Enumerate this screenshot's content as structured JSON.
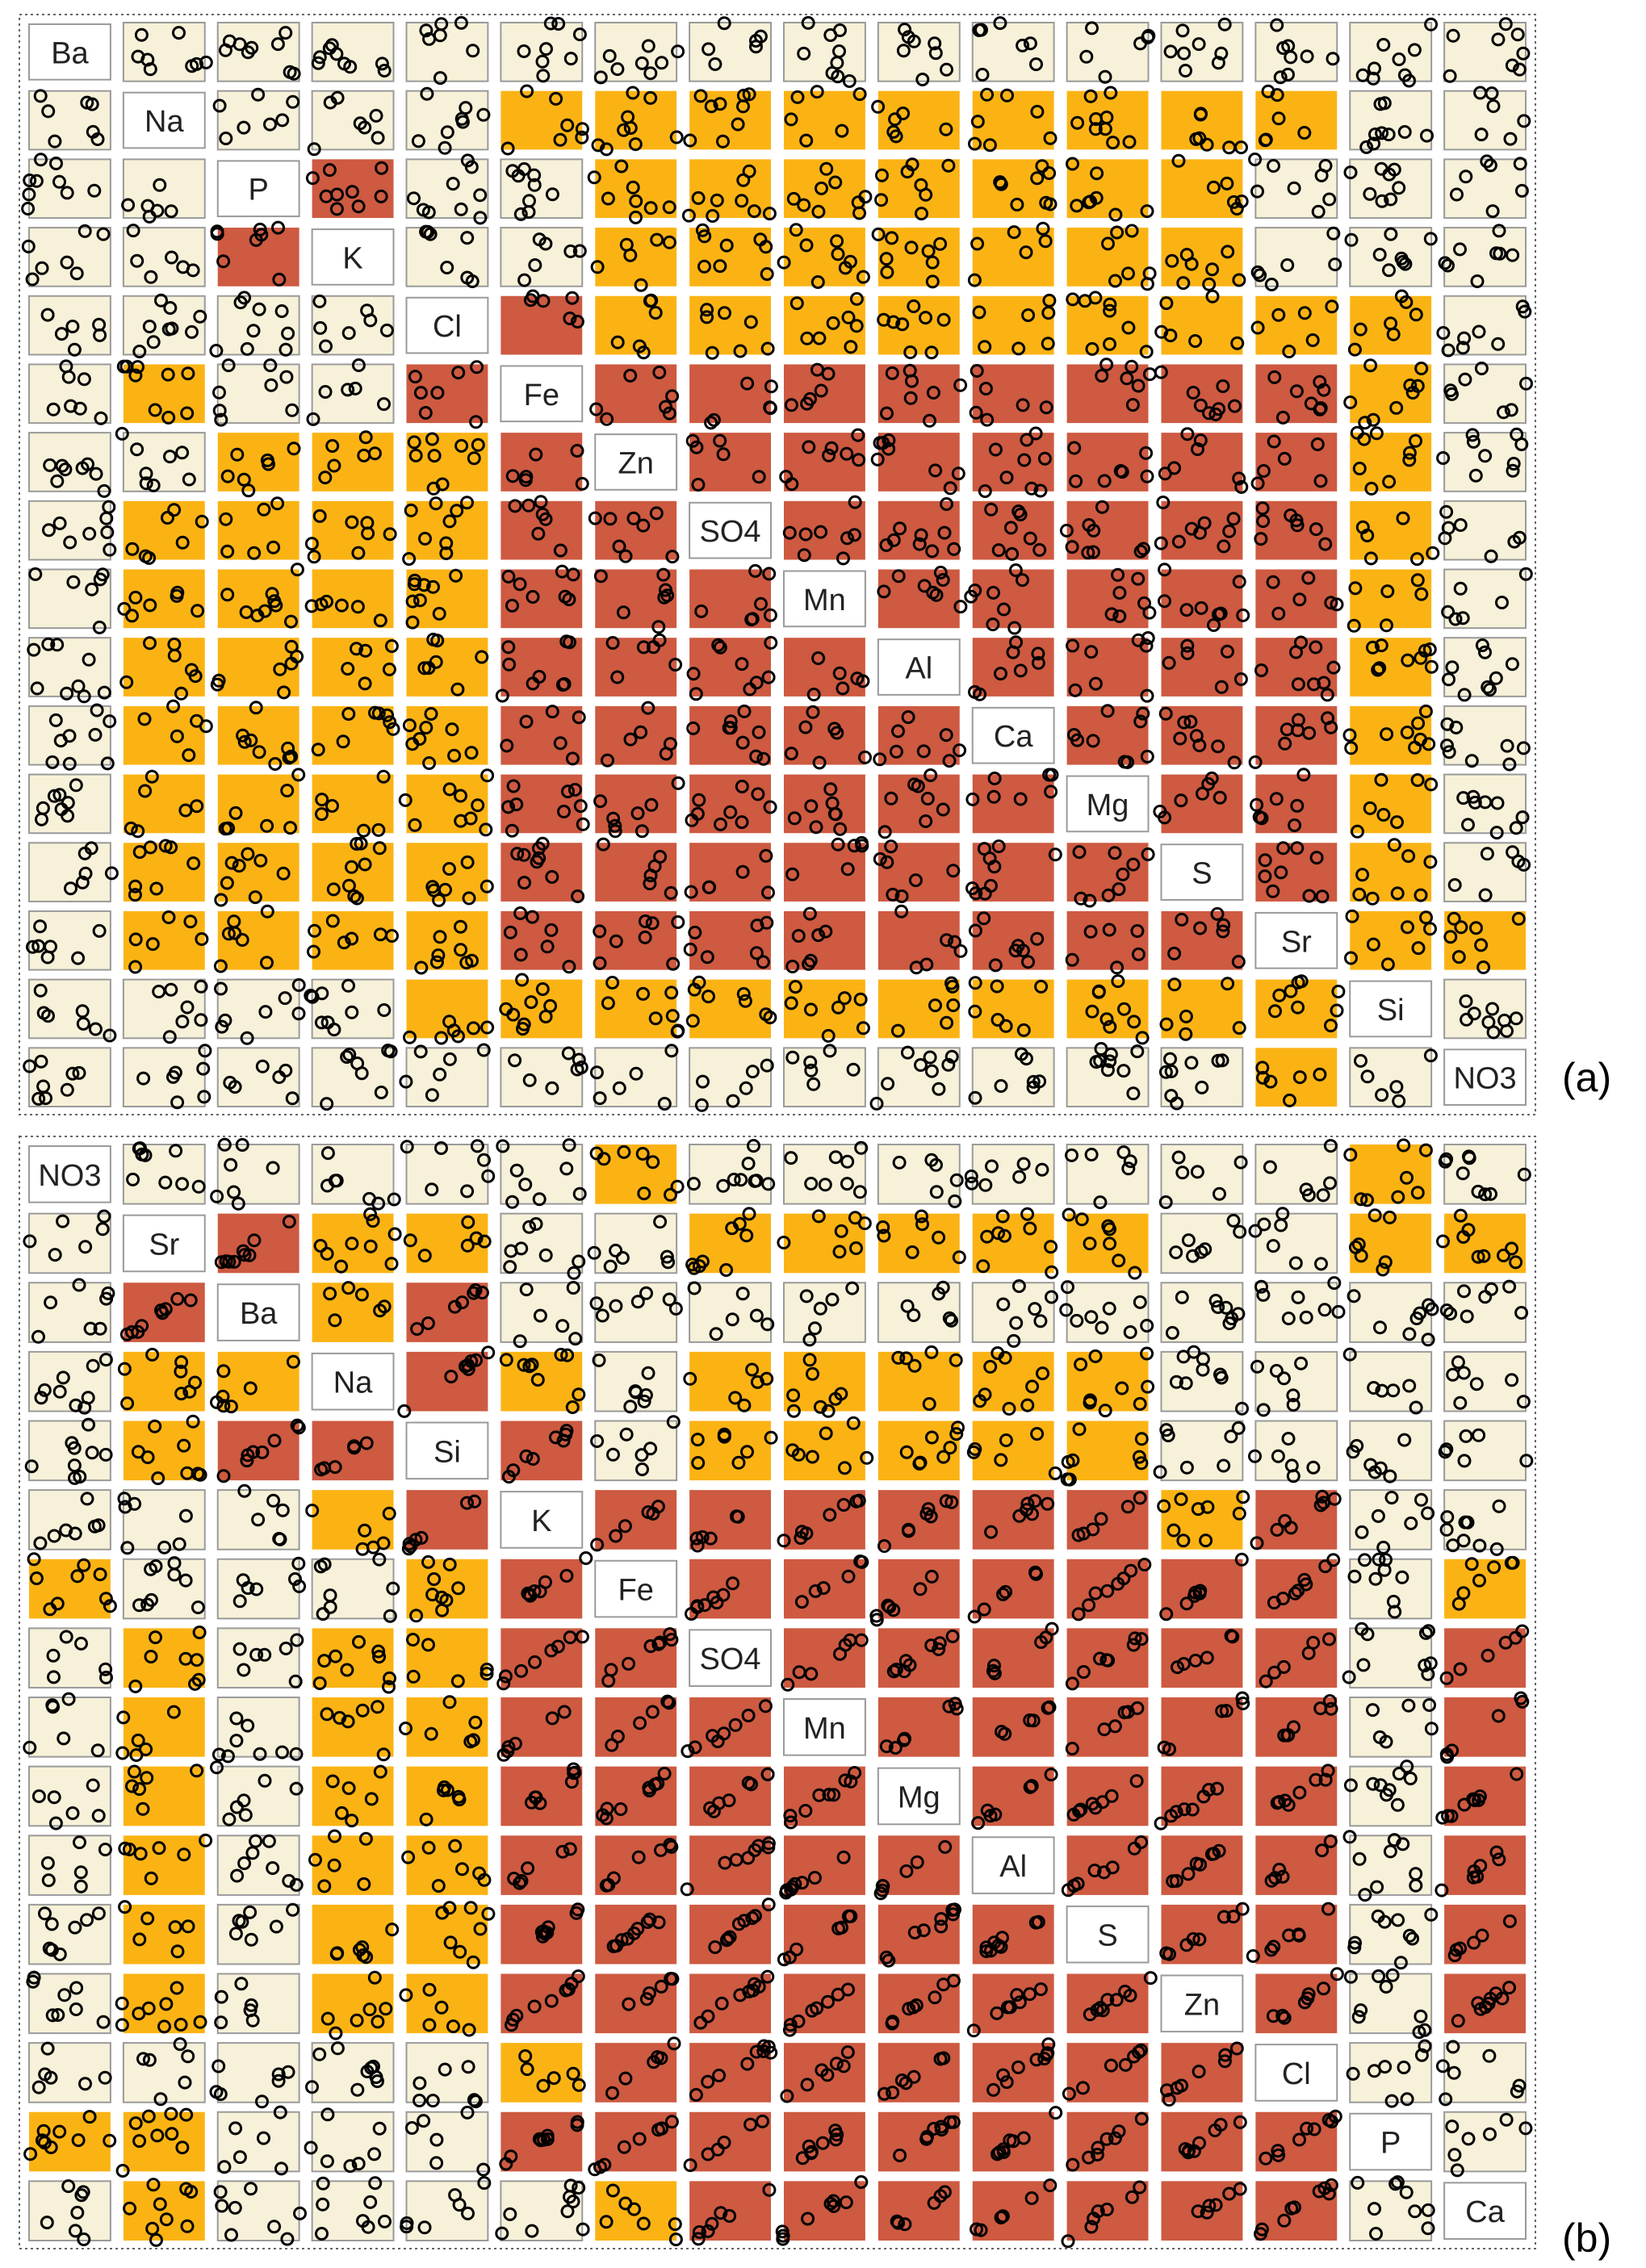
{
  "colors": {
    "background": "#ffffff",
    "low": "#f6f1d8",
    "medium": "#fbb314",
    "high": "#cd5a41",
    "cell_border": "#9a9a9a",
    "label_bg": "#ffffff",
    "marker": "#000000"
  },
  "chart_data": [
    {
      "type": "heatmap",
      "panel_label": "(a)",
      "variables": [
        "Ba",
        "Na",
        "P",
        "K",
        "Cl",
        "Fe",
        "Zn",
        "SO4",
        "Mn",
        "Al",
        "Ca",
        "Mg",
        "S",
        "Sr",
        "Si",
        "NO3"
      ],
      "level_legend": {
        "0": "low",
        "1": "medium",
        "2": "high"
      },
      "matrix": [
        [
          0,
          0,
          0,
          0,
          0,
          0,
          0,
          0,
          0,
          0,
          0,
          0,
          0,
          0,
          0,
          0
        ],
        [
          0,
          0,
          0,
          0,
          0,
          1,
          1,
          1,
          1,
          1,
          1,
          1,
          1,
          1,
          0,
          0
        ],
        [
          0,
          0,
          0,
          2,
          0,
          0,
          1,
          1,
          1,
          1,
          1,
          1,
          1,
          0,
          0,
          0
        ],
        [
          0,
          0,
          2,
          0,
          0,
          0,
          1,
          1,
          1,
          1,
          1,
          1,
          1,
          0,
          0,
          0
        ],
        [
          0,
          0,
          0,
          0,
          0,
          2,
          1,
          1,
          1,
          1,
          1,
          1,
          1,
          1,
          1,
          0
        ],
        [
          0,
          1,
          0,
          0,
          2,
          0,
          2,
          2,
          2,
          2,
          2,
          2,
          2,
          2,
          1,
          0
        ],
        [
          0,
          0,
          1,
          1,
          1,
          2,
          0,
          2,
          2,
          2,
          2,
          2,
          2,
          2,
          1,
          0
        ],
        [
          0,
          1,
          1,
          1,
          1,
          2,
          2,
          0,
          2,
          2,
          2,
          2,
          2,
          2,
          1,
          0
        ],
        [
          0,
          1,
          1,
          1,
          1,
          2,
          2,
          2,
          0,
          2,
          2,
          2,
          2,
          2,
          1,
          0
        ],
        [
          0,
          1,
          1,
          1,
          1,
          2,
          2,
          2,
          2,
          0,
          2,
          2,
          2,
          2,
          1,
          0
        ],
        [
          0,
          1,
          1,
          1,
          1,
          2,
          2,
          2,
          2,
          2,
          0,
          2,
          2,
          2,
          1,
          0
        ],
        [
          0,
          1,
          1,
          1,
          1,
          2,
          2,
          2,
          2,
          2,
          2,
          0,
          2,
          2,
          1,
          0
        ],
        [
          0,
          1,
          1,
          1,
          1,
          2,
          2,
          2,
          2,
          2,
          2,
          2,
          0,
          2,
          1,
          0
        ],
        [
          0,
          1,
          1,
          1,
          1,
          2,
          2,
          2,
          2,
          2,
          2,
          2,
          2,
          0,
          1,
          1
        ],
        [
          0,
          0,
          0,
          0,
          1,
          1,
          1,
          1,
          1,
          1,
          1,
          1,
          1,
          1,
          0,
          0
        ],
        [
          0,
          0,
          0,
          0,
          0,
          0,
          0,
          0,
          0,
          0,
          0,
          0,
          0,
          1,
          0,
          0
        ]
      ]
    },
    {
      "type": "heatmap",
      "panel_label": "(b)",
      "variables": [
        "NO3",
        "Sr",
        "Ba",
        "Na",
        "Si",
        "K",
        "Fe",
        "SO4",
        "Mn",
        "Mg",
        "Al",
        "S",
        "Zn",
        "Cl",
        "P",
        "Ca"
      ],
      "level_legend": {
        "0": "low",
        "1": "medium",
        "2": "high"
      },
      "matrix": [
        [
          0,
          0,
          0,
          0,
          0,
          0,
          1,
          0,
          0,
          0,
          0,
          0,
          0,
          0,
          1,
          0
        ],
        [
          0,
          0,
          2,
          1,
          1,
          0,
          0,
          1,
          1,
          1,
          1,
          1,
          0,
          0,
          1,
          1
        ],
        [
          0,
          2,
          0,
          1,
          2,
          0,
          0,
          0,
          0,
          0,
          0,
          0,
          0,
          0,
          0,
          0
        ],
        [
          0,
          1,
          1,
          0,
          2,
          1,
          0,
          1,
          1,
          1,
          1,
          1,
          0,
          0,
          0,
          0
        ],
        [
          0,
          1,
          2,
          2,
          0,
          2,
          0,
          1,
          1,
          1,
          1,
          1,
          0,
          0,
          0,
          0
        ],
        [
          0,
          0,
          0,
          1,
          2,
          0,
          2,
          2,
          2,
          2,
          2,
          2,
          1,
          2,
          0,
          0
        ],
        [
          1,
          0,
          0,
          0,
          1,
          2,
          0,
          2,
          2,
          2,
          2,
          2,
          2,
          2,
          0,
          1
        ],
        [
          0,
          1,
          0,
          1,
          1,
          2,
          2,
          0,
          2,
          2,
          2,
          2,
          2,
          2,
          0,
          2
        ],
        [
          0,
          1,
          0,
          1,
          1,
          2,
          2,
          2,
          0,
          2,
          2,
          2,
          2,
          2,
          0,
          2
        ],
        [
          0,
          1,
          0,
          1,
          1,
          2,
          2,
          2,
          2,
          0,
          2,
          2,
          2,
          2,
          0,
          2
        ],
        [
          0,
          1,
          0,
          1,
          1,
          2,
          2,
          2,
          2,
          2,
          0,
          2,
          2,
          2,
          0,
          2
        ],
        [
          0,
          1,
          0,
          1,
          1,
          2,
          2,
          2,
          2,
          2,
          2,
          0,
          2,
          2,
          0,
          2
        ],
        [
          0,
          1,
          0,
          1,
          1,
          2,
          2,
          2,
          2,
          2,
          2,
          2,
          0,
          2,
          0,
          2
        ],
        [
          0,
          0,
          0,
          0,
          0,
          1,
          2,
          2,
          2,
          2,
          2,
          2,
          2,
          0,
          0,
          0
        ],
        [
          1,
          1,
          0,
          0,
          0,
          2,
          2,
          2,
          2,
          2,
          2,
          2,
          2,
          2,
          0,
          0
        ],
        [
          0,
          1,
          0,
          0,
          0,
          0,
          1,
          2,
          2,
          2,
          2,
          2,
          2,
          2,
          0,
          0
        ]
      ]
    }
  ]
}
